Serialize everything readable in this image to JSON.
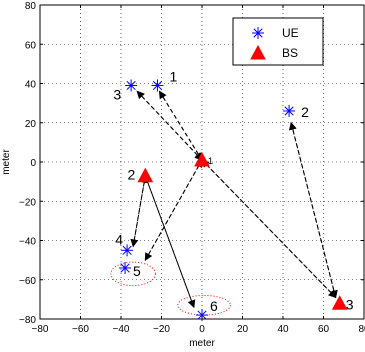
{
  "chart_data": {
    "type": "scatter",
    "xlabel": "meter",
    "ylabel": "meter",
    "xlim": [
      -80,
      80
    ],
    "ylim": [
      -80,
      80
    ],
    "x_ticks": [
      -80,
      -60,
      -40,
      -20,
      0,
      20,
      40,
      60,
      80
    ],
    "y_ticks": [
      -80,
      -60,
      -40,
      -20,
      0,
      20,
      40,
      60,
      80
    ],
    "grid": true,
    "legend_position": "top-right",
    "series": [
      {
        "name": "UE",
        "marker": "asterisk",
        "color": "#0000ff",
        "points": [
          {
            "label": "1",
            "x": -22,
            "y": 39
          },
          {
            "label": "3",
            "x": -35,
            "y": 39
          },
          {
            "label": "2",
            "x": 43,
            "y": 26
          },
          {
            "label": "4",
            "x": -37,
            "y": -45
          },
          {
            "label": "5",
            "x": -38,
            "y": -54
          },
          {
            "label": "6",
            "x": 0,
            "y": -78
          }
        ]
      },
      {
        "name": "BS",
        "marker": "triangle",
        "color": "#ff0000",
        "points": [
          {
            "label": "1",
            "x": 0,
            "y": 1
          },
          {
            "label": "2",
            "x": -28,
            "y": -7
          },
          {
            "label": "3",
            "x": 68,
            "y": -72
          }
        ]
      }
    ],
    "arrows": [
      {
        "from": [
          0,
          1
        ],
        "to": [
          -21,
          36
        ]
      },
      {
        "from": [
          -21,
          36
        ],
        "to": [
          0,
          1
        ]
      },
      {
        "from": [
          0,
          1
        ],
        "to": [
          -32,
          36
        ]
      },
      {
        "from": [
          -32,
          36
        ],
        "to": [
          0,
          1
        ]
      },
      {
        "from": [
          0,
          1
        ],
        "to": [
          -28,
          -50
        ]
      },
      {
        "from": [
          -28,
          -50
        ],
        "to": [
          0,
          1
        ]
      },
      {
        "from": [
          0,
          1
        ],
        "to": [
          66,
          -69
        ]
      },
      {
        "from": [
          66,
          -69
        ],
        "to": [
          0,
          1
        ]
      },
      {
        "from": [
          66,
          -69
        ],
        "to": [
          44,
          20
        ]
      },
      {
        "from": [
          44,
          20
        ],
        "to": [
          66,
          -69
        ]
      },
      {
        "from": [
          -28,
          -7
        ],
        "to": [
          -34,
          -43
        ]
      },
      {
        "from": [
          -34,
          -43
        ],
        "to": [
          -28,
          -7
        ]
      },
      {
        "from": [
          -28,
          -7
        ],
        "to": [
          -4,
          -74
        ]
      },
      {
        "from": [
          -4,
          -74
        ],
        "to": [
          -28,
          -7
        ]
      }
    ],
    "ellipses": [
      {
        "cx": -34,
        "cy": -57,
        "rx": 11,
        "ry": 6
      },
      {
        "cx": 1,
        "cy": -73,
        "rx": 13,
        "ry": 5
      }
    ]
  }
}
